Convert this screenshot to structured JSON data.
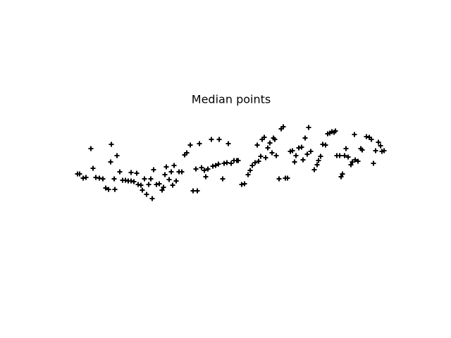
{
  "chart_data": {
    "type": "scatter",
    "title": "Median points",
    "color": "#000000",
    "xlim": [
      80,
      576
    ],
    "ylim": [
      53,
      422
    ],
    "x": [
      110,
      113,
      118,
      122,
      129,
      132,
      136,
      141,
      146,
      150,
      154,
      157,
      158,
      162,
      163,
      166,
      170,
      174,
      178,
      182,
      186,
      186,
      190,
      194,
      196,
      200,
      202,
      205,
      208,
      211,
      214,
      216,
      218,
      222,
      226,
      230,
      232,
      234,
      236,
      240,
      243,
      245,
      247,
      250,
      254,
      258,
      262,
      265,
      270,
      274,
      278,
      280,
      283,
      286,
      290,
      292,
      295,
      300,
      302,
      306,
      310,
      311,
      316,
      318,
      322,
      324,
      328,
      332,
      336,
      338,
      343,
      347,
      352,
      355,
      358,
      362,
      365,
      367,
      370,
      372,
      375,
      377,
      380,
      383,
      386,
      388,
      390,
      392,
      396,
      399,
      402,
      405,
      408,
      412,
      415,
      418,
      420,
      424,
      428,
      430,
      433,
      436,
      438,
      441,
      446,
      450,
      452,
      455,
      458,
      462,
      465,
      468,
      471,
      474,
      476,
      478,
      482,
      484,
      486,
      489,
      491,
      494,
      498,
      500,
      503,
      504,
      508,
      512,
      514,
      520,
      524,
      527,
      530,
      533,
      537,
      540,
      542,
      545
    ],
    "y": [
      233,
      233,
      227,
      228,
      269,
      241,
      228,
      227,
      226,
      213,
      211,
      250,
      275,
      226,
      211,
      259,
      236,
      224,
      224,
      223,
      235,
      223,
      222,
      234,
      218,
      217,
      210,
      226,
      204,
      218,
      226,
      198,
      239,
      218,
      219,
      210,
      214,
      232,
      243,
      225,
      236,
      217,
      245,
      223,
      236,
      236,
      260,
      263,
      274,
      209,
      240,
      209,
      276,
      242,
      238,
      229,
      240,
      282,
      244,
      245,
      247,
      282,
      226,
      248,
      249,
      276,
      248,
      252,
      252,
      252,
      218,
      219,
      232,
      238,
      245,
      249,
      274,
      251,
      258,
      282,
      285,
      256,
      270,
      277,
      263,
      284,
      282,
      259,
      226,
      297,
      300,
      227,
      227,
      265,
      266,
      250,
      259,
      270,
      271,
      253,
      284,
      261,
      299,
      265,
      239,
      246,
      252,
      258,
      275,
      274,
      290,
      291,
      293,
      292,
      294,
      259,
      259,
      229,
      233,
      259,
      269,
      257,
      246,
      250,
      289,
      253,
      251,
      269,
      267,
      286,
      285,
      282,
      248,
      266,
      278,
      273,
      265,
      266
    ]
  }
}
